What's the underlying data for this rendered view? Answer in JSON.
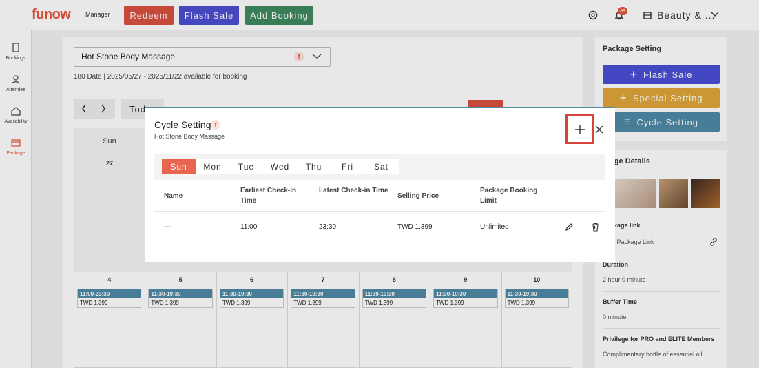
{
  "header": {
    "logo": "funow",
    "logo_suffix": "Manager",
    "buttons": [
      "Redeem",
      "Flash Sale",
      "Add Booking"
    ],
    "notification_count": "68",
    "account": "Beauty & ..."
  },
  "sidebar": {
    "items": [
      "Bookings",
      "Attendee",
      "Availability",
      "Package"
    ]
  },
  "main": {
    "package_select": "Hot Stone Body Massage",
    "availability": "180 Date | 2025/05/27 - 2025/11/22 available for booking",
    "today": "Today",
    "calendar": {
      "weekdays": [
        "Sun"
      ],
      "first_row_dates": [
        "27"
      ],
      "days": [
        {
          "date": "4",
          "time": "11:00-23:30",
          "price": "TWD 1,399"
        },
        {
          "date": "5",
          "time": "11:30-19:30",
          "price": "TWD 1,399"
        },
        {
          "date": "6",
          "time": "11:30-19:30",
          "price": "TWD 1,399"
        },
        {
          "date": "7",
          "time": "11:30-19:30",
          "price": "TWD 1,399"
        },
        {
          "date": "8",
          "time": "11:30-19:30",
          "price": "TWD 1,399"
        },
        {
          "date": "9",
          "time": "11:30-19:30",
          "price": "TWD 1,399"
        },
        {
          "date": "10",
          "time": "11:30-19:30",
          "price": "TWD 1,399"
        }
      ]
    }
  },
  "right_panel": {
    "title": "Package Setting",
    "buttons": [
      "Flash Sale",
      "Special Setting",
      "Cycle Setting"
    ],
    "details_title": "Package Details",
    "link_label": "Package link",
    "link_text": "Funow Package Link",
    "duration_label": "Duration",
    "duration": "2 hour 0 minute",
    "buffer_label": "Buffer Time",
    "buffer": "0 minute",
    "privilege_label": "Privilege for PRO and ELITE Members",
    "privilege": "Complimentary bottle of essential oil."
  },
  "modal": {
    "title": "Cycle Setting",
    "subtitle": "Hot Stone Body Massage",
    "tabs": [
      "Sun",
      "Mon",
      "Tue",
      "Wed",
      "Thu",
      "Fri",
      "Sat"
    ],
    "table": {
      "headers": [
        "Name",
        "Earliest Check-in Time",
        "Latest Check-in Time",
        "Selling Price",
        "Package Booking Limit"
      ],
      "rows": [
        [
          "---",
          "11:00",
          "23:30",
          "TWD 1,399",
          "Unlimited"
        ]
      ]
    }
  }
}
